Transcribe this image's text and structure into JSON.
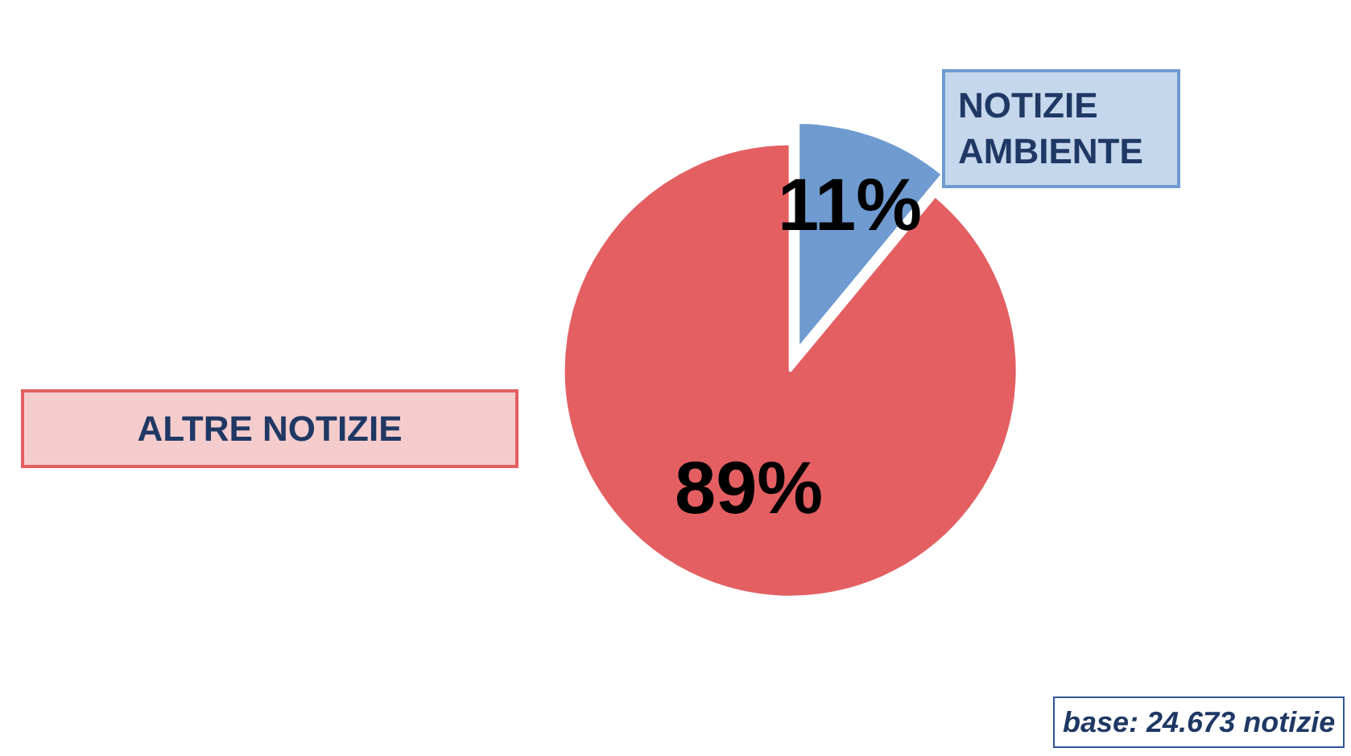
{
  "chart_data": {
    "type": "pie",
    "categories": [
      "NOTIZIE AMBIENTE",
      "ALTRE NOTIZIE"
    ],
    "values": [
      11,
      89
    ],
    "colors": [
      "#6f9bd1",
      "#e45f62"
    ],
    "value_labels": [
      "11%",
      "89%"
    ],
    "legend": false,
    "annotations": [
      "base: 24.673 notizie"
    ]
  }
}
